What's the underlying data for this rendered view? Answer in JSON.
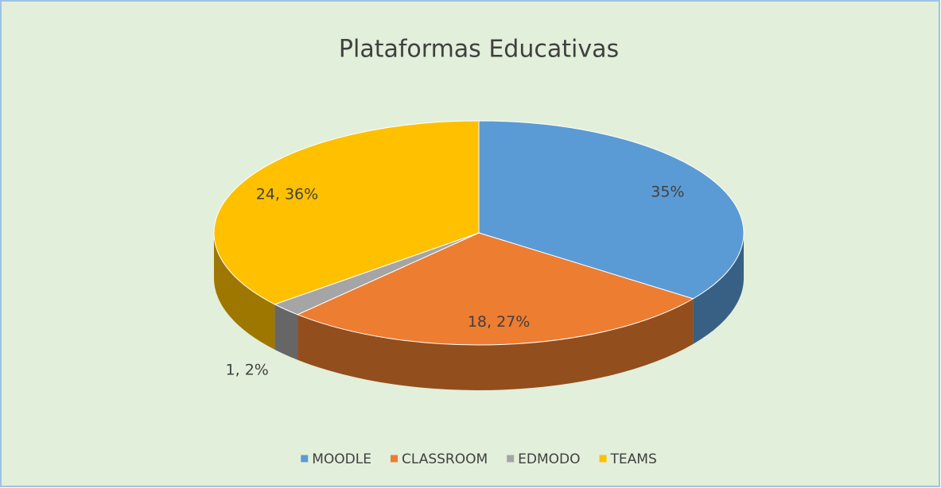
{
  "chart_data": {
    "type": "pie",
    "title": "Plataformas Educativas",
    "categories": [
      "MOODLE",
      "CLASSROOM",
      "EDMODO",
      "TEAMS"
    ],
    "values": [
      35,
      27,
      2,
      36
    ],
    "value_labels": [
      "35%",
      "18, 27%",
      "1, 2%",
      "24, 36%"
    ],
    "colors": [
      "#5b9bd5",
      "#ed7d31",
      "#a5a5a5",
      "#ffc000"
    ],
    "legend": "bottom"
  }
}
